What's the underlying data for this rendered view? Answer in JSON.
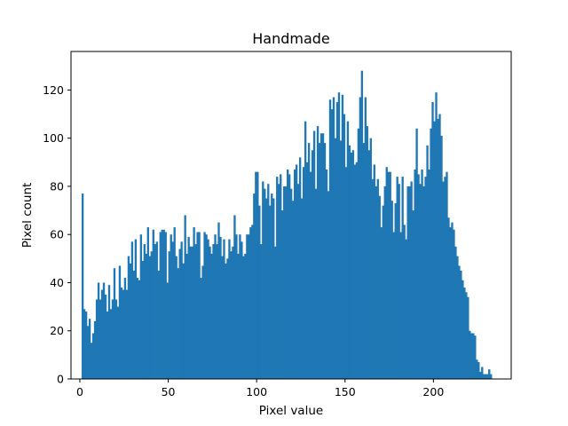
{
  "chart_data": {
    "type": "bar",
    "title": "Handmade",
    "xlabel": "Pixel value",
    "ylabel": "Pixel count",
    "xlim": [
      -5,
      244
    ],
    "ylim": [
      0,
      136
    ],
    "xticks": [
      0,
      50,
      100,
      150,
      200
    ],
    "yticks": [
      0,
      20,
      40,
      60,
      80,
      100,
      120
    ],
    "bar_color": "#1f77b4",
    "bin_width": 1,
    "x_start": 1,
    "values": [
      77,
      29,
      28,
      22,
      25,
      15,
      19,
      24,
      33,
      40,
      33,
      37,
      40,
      35,
      28,
      39,
      29,
      33,
      46,
      33,
      30,
      47,
      38,
      37,
      42,
      37,
      51,
      48,
      57,
      45,
      58,
      42,
      41,
      60,
      49,
      56,
      52,
      63,
      51,
      53,
      62,
      56,
      57,
      45,
      61,
      62,
      62,
      61,
      40,
      53,
      60,
      57,
      63,
      51,
      46,
      54,
      57,
      48,
      68,
      52,
      59,
      55,
      55,
      63,
      56,
      61,
      61,
      42,
      47,
      61,
      60,
      58,
      55,
      52,
      56,
      60,
      56,
      65,
      59,
      51,
      58,
      48,
      50,
      58,
      53,
      55,
      68,
      60,
      52,
      60,
      57,
      51,
      52,
      60,
      60,
      63,
      64,
      77,
      86,
      86,
      72,
      56,
      82,
      79,
      75,
      81,
      72,
      77,
      75,
      55,
      84,
      81,
      85,
      70,
      80,
      80,
      87,
      85,
      79,
      74,
      87,
      89,
      81,
      92,
      75,
      88,
      107,
      90,
      98,
      86,
      95,
      103,
      79,
      105,
      98,
      102,
      102,
      98,
      87,
      78,
      116,
      112,
      117,
      100,
      115,
      119,
      99,
      118,
      110,
      88,
      107,
      97,
      94,
      95,
      89,
      90,
      104,
      117,
      128,
      98,
      117,
      105,
      95,
      100,
      83,
      89,
      80,
      83,
      76,
      63,
      72,
      80,
      88,
      86,
      86,
      74,
      61,
      73,
      84,
      81,
      61,
      84,
      64,
      58,
      80,
      80,
      82,
      70,
      87,
      104,
      85,
      81,
      87,
      80,
      84,
      97,
      87,
      104,
      115,
      107,
      119,
      108,
      110,
      101,
      82,
      84,
      86,
      67,
      63,
      65,
      62,
      55,
      51,
      47,
      45,
      41,
      38,
      36,
      34,
      20,
      19,
      19,
      18,
      8,
      7,
      3,
      5,
      2,
      2,
      2,
      4,
      2
    ]
  }
}
